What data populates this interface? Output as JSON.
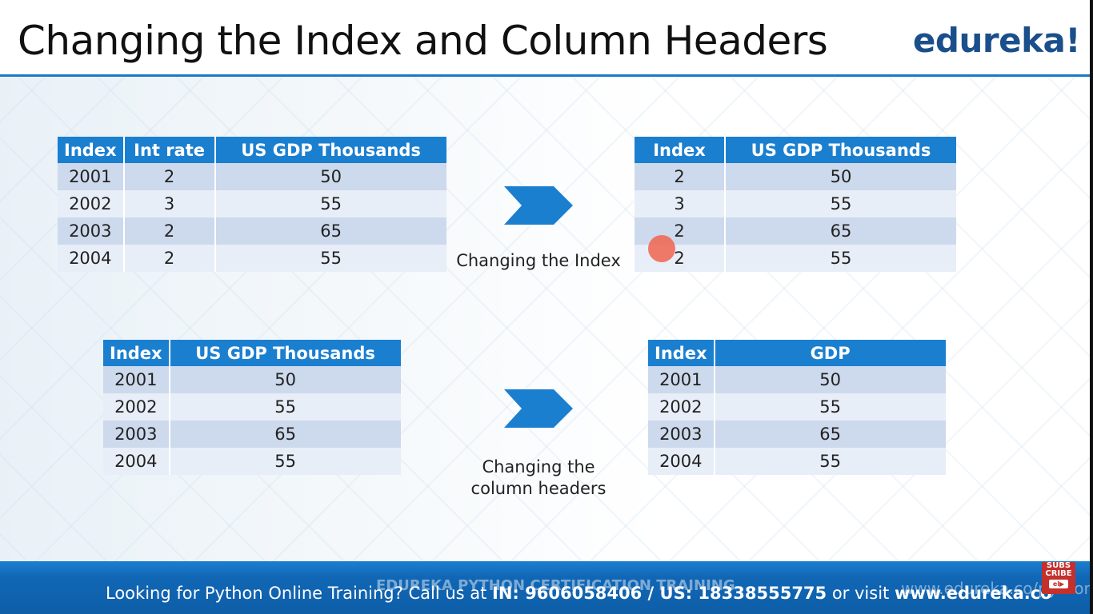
{
  "slide": {
    "title": "Changing the Index and Column Headers",
    "logo": "edureka!"
  },
  "tables": {
    "t1": {
      "headers": [
        "Index",
        "Int rate",
        "US GDP Thousands"
      ],
      "rows": [
        [
          "2001",
          "2",
          "50"
        ],
        [
          "2002",
          "3",
          "55"
        ],
        [
          "2003",
          "2",
          "65"
        ],
        [
          "2004",
          "2",
          "55"
        ]
      ]
    },
    "t2": {
      "headers": [
        "Index",
        "US GDP Thousands"
      ],
      "rows": [
        [
          "2",
          "50"
        ],
        [
          "3",
          "55"
        ],
        [
          "2",
          "65"
        ],
        [
          "2",
          "55"
        ]
      ]
    },
    "t3": {
      "headers": [
        "Index",
        "US GDP Thousands"
      ],
      "rows": [
        [
          "2001",
          "50"
        ],
        [
          "2002",
          "55"
        ],
        [
          "2003",
          "65"
        ],
        [
          "2004",
          "55"
        ]
      ]
    },
    "t4": {
      "headers": [
        "Index",
        "GDP"
      ],
      "rows": [
        [
          "2001",
          "50"
        ],
        [
          "2002",
          "55"
        ],
        [
          "2003",
          "65"
        ],
        [
          "2004",
          "55"
        ]
      ]
    }
  },
  "captions": {
    "index": "Changing the Index",
    "headers_line1": "Changing the",
    "headers_line2": "column headers"
  },
  "footer": {
    "prefix": "Looking for Python Online Training? Call us at ",
    "phones": "IN: 9606058406 / US: 18338555775",
    "middle": " or visit ",
    "url": "www.edureka.co",
    "watermark": "EDUREKA PYTHON CERTIFICATION TRAINING",
    "watermark_url": "www.edureka.co/python",
    "subscribe_top": "SUBS",
    "subscribe_mid": "CRIBE",
    "subscribe_icon": "el▶"
  },
  "colors": {
    "header_blue": "#1b7fd0",
    "row_dark": "#cdd9ec",
    "row_light": "#e8eef7",
    "footer_blue": "#1167b5",
    "logo_blue": "#1a4f8b"
  }
}
